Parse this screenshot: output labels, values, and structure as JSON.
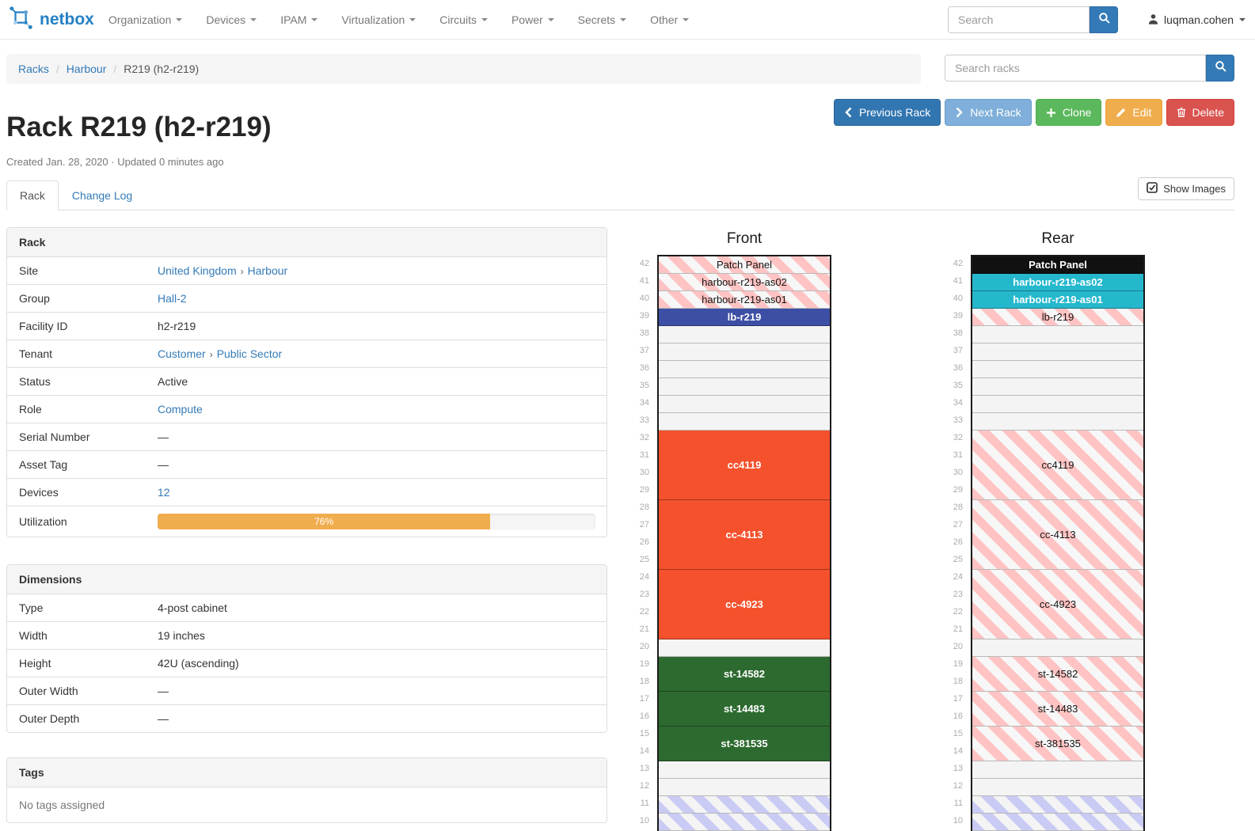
{
  "navbar": {
    "brand": "netbox",
    "items": [
      {
        "label": "Organization"
      },
      {
        "label": "Devices"
      },
      {
        "label": "IPAM"
      },
      {
        "label": "Virtualization"
      },
      {
        "label": "Circuits"
      },
      {
        "label": "Power"
      },
      {
        "label": "Secrets"
      },
      {
        "label": "Other"
      }
    ],
    "search_placeholder": "Search",
    "user": "luqman.cohen"
  },
  "breadcrumb": {
    "items": [
      {
        "label": "Racks",
        "link": true
      },
      {
        "label": "Harbour",
        "link": true
      },
      {
        "label": "R219 (h2-r219)",
        "link": false
      }
    ]
  },
  "rack_search": {
    "placeholder": "Search racks"
  },
  "actions": [
    {
      "label": "Previous Rack",
      "icon": "chevron-left-icon",
      "bg": "#3276b1",
      "border": "#2a6496"
    },
    {
      "label": "Next Rack",
      "icon": "chevron-right-icon",
      "bg": "#7fafda",
      "border": "#6d9fc9"
    },
    {
      "label": "Clone",
      "icon": "plus-icon",
      "bg": "#5cb85c",
      "border": "#4cae4c"
    },
    {
      "label": "Edit",
      "icon": "pencil-icon",
      "bg": "#f0ad4e",
      "border": "#eea236"
    },
    {
      "label": "Delete",
      "icon": "trash-icon",
      "bg": "#d9534f",
      "border": "#d43f3a"
    }
  ],
  "header": {
    "title": "Rack R219 (h2-r219)",
    "meta": "Created Jan. 28, 2020 · Updated 0 minutes ago"
  },
  "tabs": [
    {
      "label": "Rack",
      "active": true
    },
    {
      "label": "Change Log",
      "active": false
    }
  ],
  "show_images_label": "Show Images",
  "panels": {
    "rack": {
      "title": "Rack",
      "rows": [
        {
          "label": "Site",
          "parts": [
            {
              "text": "United Kingdom",
              "link": true
            },
            {
              "text": "›",
              "sep": true
            },
            {
              "text": "Harbour",
              "link": true
            }
          ]
        },
        {
          "label": "Group",
          "parts": [
            {
              "text": "Hall-2",
              "link": true
            }
          ]
        },
        {
          "label": "Facility ID",
          "parts": [
            {
              "text": "h2-r219"
            }
          ]
        },
        {
          "label": "Tenant",
          "parts": [
            {
              "text": "Customer",
              "link": true
            },
            {
              "text": "›",
              "sep": true
            },
            {
              "text": "Public Sector",
              "link": true
            }
          ]
        },
        {
          "label": "Status",
          "parts": [
            {
              "text": "Active"
            }
          ]
        },
        {
          "label": "Role",
          "parts": [
            {
              "text": "Compute",
              "link": true
            }
          ]
        },
        {
          "label": "Serial Number",
          "parts": [
            {
              "text": "—"
            }
          ]
        },
        {
          "label": "Asset Tag",
          "parts": [
            {
              "text": "—"
            }
          ]
        },
        {
          "label": "Devices",
          "parts": [
            {
              "text": "12",
              "link": true
            }
          ]
        },
        {
          "label": "Utilization",
          "progress": {
            "percent": 76,
            "label": "76%",
            "color": "#f0ad4e"
          }
        }
      ]
    },
    "dimensions": {
      "title": "Dimensions",
      "rows": [
        {
          "label": "Type",
          "parts": [
            {
              "text": "4-post cabinet"
            }
          ]
        },
        {
          "label": "Width",
          "parts": [
            {
              "text": "19 inches"
            }
          ]
        },
        {
          "label": "Height",
          "parts": [
            {
              "text": "42U (ascending)"
            }
          ]
        },
        {
          "label": "Outer Width",
          "parts": [
            {
              "text": "—"
            }
          ]
        },
        {
          "label": "Outer Depth",
          "parts": [
            {
              "text": "—"
            }
          ]
        }
      ]
    },
    "tags": {
      "title": "Tags",
      "empty_text": "No tags assigned"
    }
  },
  "elevations": {
    "top_unit": 42,
    "bottom_visible_unit": 10,
    "front": {
      "title": "Front",
      "slots": [
        {
          "unit": 42,
          "span": 1,
          "label": "Patch Panel",
          "style": "hatch-pink"
        },
        {
          "unit": 41,
          "span": 1,
          "label": "harbour-r219-as02",
          "style": "hatch-pink"
        },
        {
          "unit": 40,
          "span": 1,
          "label": "harbour-r219-as01",
          "style": "hatch-pink"
        },
        {
          "unit": 39,
          "span": 1,
          "label": "lb-r219",
          "style": "solid",
          "color": "#3d4fa4"
        },
        {
          "unit": 38,
          "span": 1,
          "style": "empty"
        },
        {
          "unit": 37,
          "span": 1,
          "style": "empty"
        },
        {
          "unit": 36,
          "span": 1,
          "style": "empty"
        },
        {
          "unit": 35,
          "span": 1,
          "style": "empty"
        },
        {
          "unit": 34,
          "span": 1,
          "style": "empty"
        },
        {
          "unit": 33,
          "span": 1,
          "style": "empty"
        },
        {
          "unit": 32,
          "span": 4,
          "label": "cc4119",
          "style": "solid",
          "color": "#f4512c"
        },
        {
          "unit": 28,
          "span": 4,
          "label": "cc-4113",
          "style": "solid",
          "color": "#f4512c"
        },
        {
          "unit": 24,
          "span": 4,
          "label": "cc-4923",
          "style": "solid",
          "color": "#f4512c"
        },
        {
          "unit": 20,
          "span": 1,
          "style": "empty"
        },
        {
          "unit": 19,
          "span": 2,
          "label": "st-14582",
          "style": "solid",
          "color": "#2d6a30"
        },
        {
          "unit": 17,
          "span": 2,
          "label": "st-14483",
          "style": "solid",
          "color": "#2d6a30"
        },
        {
          "unit": 15,
          "span": 2,
          "label": "st-381535",
          "style": "solid",
          "color": "#2d6a30"
        },
        {
          "unit": 13,
          "span": 1,
          "style": "empty"
        },
        {
          "unit": 12,
          "span": 1,
          "style": "empty"
        },
        {
          "unit": 11,
          "span": 1,
          "style": "hatch-blue"
        },
        {
          "unit": 10,
          "span": 1,
          "style": "hatch-blue"
        }
      ]
    },
    "rear": {
      "title": "Rear",
      "slots": [
        {
          "unit": 42,
          "span": 1,
          "label": "Patch Panel",
          "style": "solid",
          "color": "#111111"
        },
        {
          "unit": 41,
          "span": 1,
          "label": "harbour-r219-as02",
          "style": "solid",
          "color": "#25b8cd"
        },
        {
          "unit": 40,
          "span": 1,
          "label": "harbour-r219-as01",
          "style": "solid",
          "color": "#25b8cd"
        },
        {
          "unit": 39,
          "span": 1,
          "label": "lb-r219",
          "style": "hatch-pink"
        },
        {
          "unit": 38,
          "span": 1,
          "style": "empty"
        },
        {
          "unit": 37,
          "span": 1,
          "style": "empty"
        },
        {
          "unit": 36,
          "span": 1,
          "style": "empty"
        },
        {
          "unit": 35,
          "span": 1,
          "style": "empty"
        },
        {
          "unit": 34,
          "span": 1,
          "style": "empty"
        },
        {
          "unit": 33,
          "span": 1,
          "style": "empty"
        },
        {
          "unit": 32,
          "span": 4,
          "label": "cc4119",
          "style": "hatch-pink"
        },
        {
          "unit": 28,
          "span": 4,
          "label": "cc-4113",
          "style": "hatch-pink"
        },
        {
          "unit": 24,
          "span": 4,
          "label": "cc-4923",
          "style": "hatch-pink"
        },
        {
          "unit": 20,
          "span": 1,
          "style": "empty"
        },
        {
          "unit": 19,
          "span": 2,
          "label": "st-14582",
          "style": "hatch-pink"
        },
        {
          "unit": 17,
          "span": 2,
          "label": "st-14483",
          "style": "hatch-pink"
        },
        {
          "unit": 15,
          "span": 2,
          "label": "st-381535",
          "style": "hatch-pink"
        },
        {
          "unit": 13,
          "span": 1,
          "style": "empty"
        },
        {
          "unit": 12,
          "span": 1,
          "style": "empty"
        },
        {
          "unit": 11,
          "span": 1,
          "style": "hatch-blue"
        },
        {
          "unit": 10,
          "span": 1,
          "style": "hatch-blue"
        }
      ]
    }
  }
}
